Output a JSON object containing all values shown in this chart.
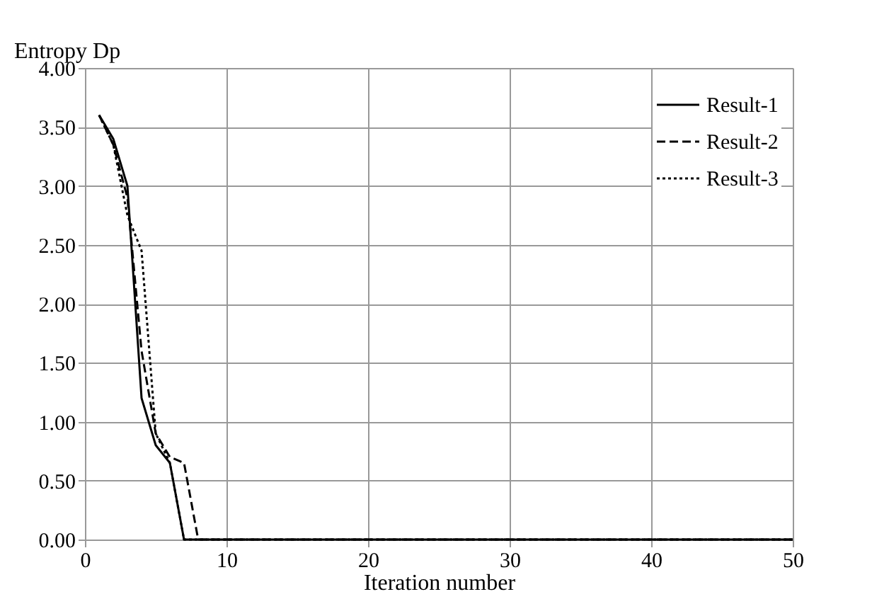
{
  "chart_data": {
    "type": "line",
    "ylabel": "Entropy Dp",
    "xlabel": "Iteration number",
    "x": [
      1,
      2,
      3,
      4,
      5,
      6,
      7,
      8,
      9,
      10,
      20,
      30,
      40,
      50
    ],
    "series": [
      {
        "name": "Result-1",
        "color": "#000000",
        "line_style": "solid",
        "values": [
          3.6,
          3.4,
          3.0,
          1.2,
          0.8,
          0.65,
          0,
          0,
          0,
          0,
          0,
          0,
          0,
          0
        ]
      },
      {
        "name": "Result-2",
        "color": "#000000",
        "line_style": "dashed",
        "values": [
          3.6,
          3.35,
          2.9,
          1.6,
          0.9,
          0.7,
          0.65,
          0,
          0,
          0,
          0,
          0,
          0,
          0
        ]
      },
      {
        "name": "Result-3",
        "color": "#000000",
        "line_style": "dotted",
        "values": [
          3.6,
          3.35,
          2.75,
          2.45,
          0.9,
          0.65,
          0,
          0,
          0,
          0,
          0,
          0,
          0,
          0
        ]
      }
    ],
    "xlim": [
      0,
      50
    ],
    "xticks": [
      0,
      10,
      20,
      30,
      40,
      50
    ],
    "ylim": [
      0,
      4
    ],
    "yticks": [
      {
        "value": 0,
        "label": "0.00"
      },
      {
        "value": 0.5,
        "label": "0.50"
      },
      {
        "value": 1,
        "label": "1.00"
      },
      {
        "value": 1.5,
        "label": "1.50"
      },
      {
        "value": 2,
        "label": "2.00"
      },
      {
        "value": 2.5,
        "label": "2.50"
      },
      {
        "value": 3,
        "label": "3.00"
      },
      {
        "value": 3.5,
        "label": "3.50"
      },
      {
        "value": 4,
        "label": "4.00"
      }
    ],
    "grid": true,
    "legend": "top right",
    "marker": "none"
  }
}
